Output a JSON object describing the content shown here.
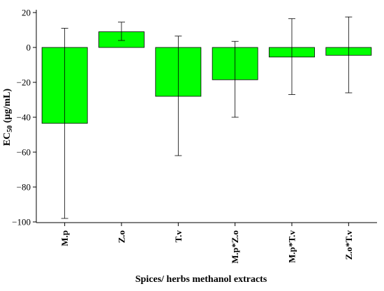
{
  "chart_data": {
    "type": "bar",
    "xlabel": "Spices/ herbs methanol extracts",
    "ylabel": "EC",
    "ylabel_subscript": "50",
    "ylabel_units": " (µg/mL)",
    "categories": [
      "M.p",
      "Z.o",
      "T.v",
      "M.p*Z.o",
      "M.p*T.v",
      "Z.o*T.v"
    ],
    "values": [
      -43.5,
      9,
      -28,
      -18.5,
      -5.5,
      -4.5
    ],
    "error_low": [
      -98,
      4,
      -62,
      -40,
      -27,
      -26
    ],
    "error_high": [
      11,
      14.5,
      6.5,
      3.5,
      16.5,
      17.5
    ],
    "ylim": [
      -100,
      20
    ],
    "yticks": [
      20,
      0,
      -20,
      -40,
      -60,
      -80,
      -100
    ],
    "ytick_labels": [
      "20",
      "0",
      "−20",
      "−40",
      "−60",
      "−80",
      "−100"
    ],
    "bar_color": "#00ff00",
    "bar_stroke": "#000000",
    "grid": false
  }
}
